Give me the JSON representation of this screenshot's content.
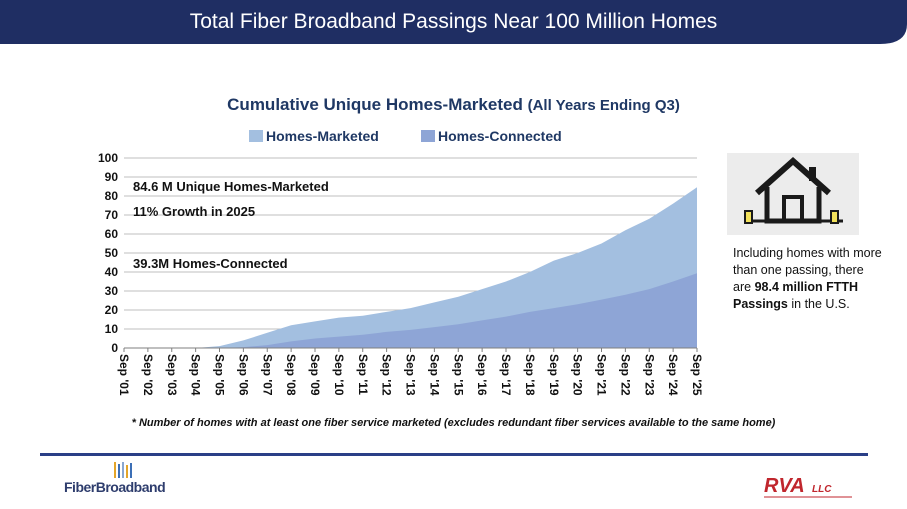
{
  "header": {
    "title": "Total Fiber Broadband Passings Near 100 Million Homes"
  },
  "chart_data": {
    "type": "area",
    "title": "Cumulative Unique Homes-Marketed",
    "title_suffix": "(All Years Ending Q3)",
    "categories": [
      "Sep '01",
      "Sep '02",
      "Sep '03",
      "Sep '04",
      "Sep '05",
      "Sep '06",
      "Sep '07",
      "Sep '08",
      "Sep '09",
      "Sep '10",
      "Sep '11",
      "Sep '12",
      "Sep '13",
      "Sep '14",
      "Sep '15",
      "Sep '16",
      "Sep '17",
      "Sep '18",
      "Sep '19",
      "Sep '20",
      "Sep '21",
      "Sep '22",
      "Sep '23",
      "Sep '24",
      "Sep '25"
    ],
    "series": [
      {
        "name": "Homes-Marketed",
        "color": "#a3bfe0",
        "values": [
          0,
          0,
          0,
          0,
          1,
          4,
          8,
          12,
          14,
          16,
          17,
          19,
          21,
          24,
          27,
          31,
          35,
          40,
          46,
          50,
          55,
          62,
          68,
          76,
          84.6
        ]
      },
      {
        "name": "Homes-Connected",
        "color": "#8ea5d6",
        "values": [
          0,
          0,
          0,
          0,
          0,
          0.5,
          1.5,
          3.5,
          5,
          6,
          7,
          8.5,
          9.5,
          11,
          12.5,
          14.5,
          16.5,
          19,
          21,
          23,
          25.5,
          28,
          31,
          35,
          39.3
        ]
      }
    ],
    "y_ticks": [
      "0",
      "10",
      "20",
      "30",
      "40",
      "50",
      "60",
      "70",
      "80",
      "90",
      "100"
    ],
    "ylim": [
      0,
      100
    ],
    "grid": true,
    "legend_position": "top",
    "annotations": [
      "84.6 M Unique Homes-Marketed",
      "11% Growth in 2025",
      "39.3M Homes-Connected"
    ]
  },
  "side_note": {
    "text": "Including homes with more than one passing, there are",
    "bold": "98.4 million FTTH Passings",
    "suffix": "in the U.S."
  },
  "footnote": "* Number of homes with at least one fiber service marketed (excludes redundant fiber services available to the same home)",
  "logos": {
    "left": "FiberBroadband",
    "right": "RVA",
    "right_suffix": "LLC"
  },
  "colors": {
    "banner": "#1f2e63",
    "accent": "#2a3f87",
    "title": "#1f3864",
    "rva_red": "#c0262d"
  }
}
